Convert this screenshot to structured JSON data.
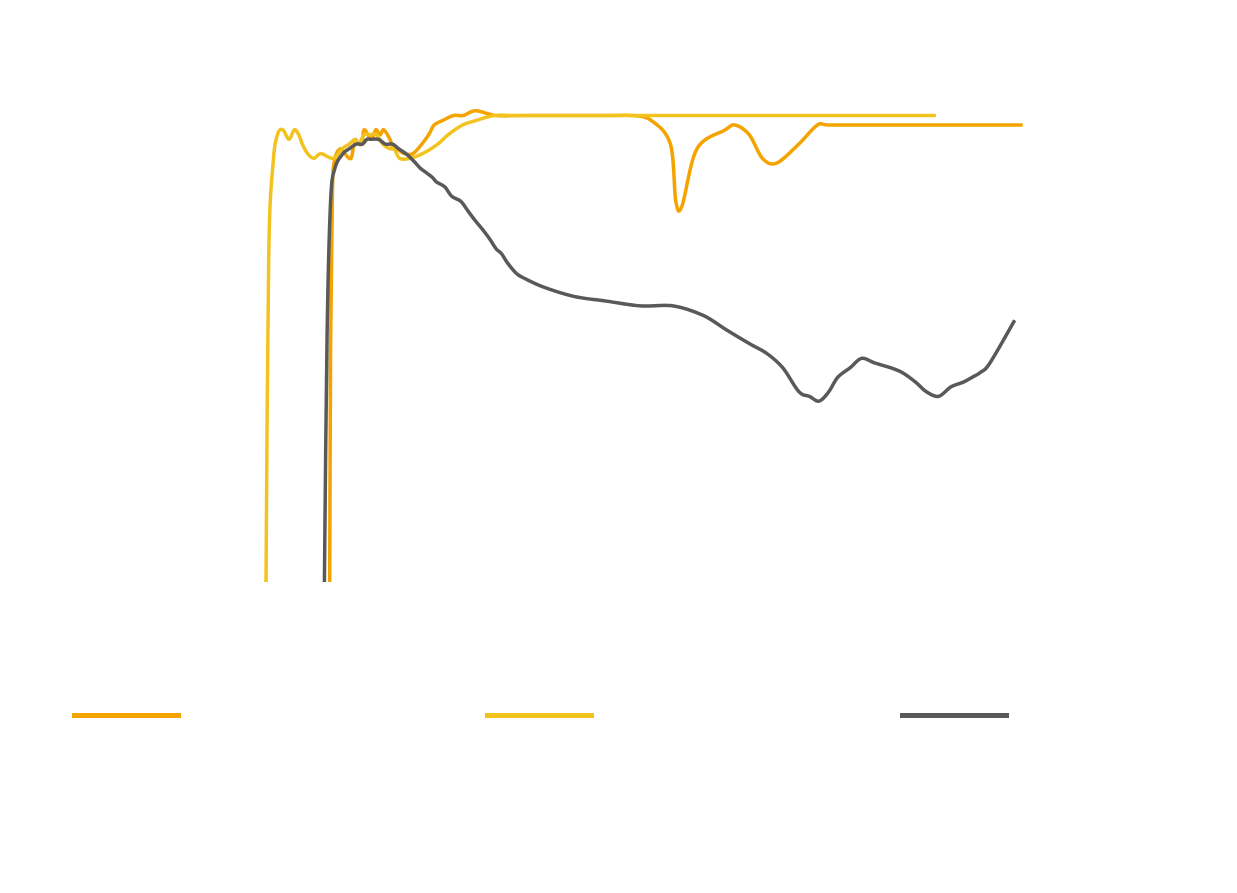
{
  "chart_data": {
    "type": "line",
    "title": "",
    "xlabel": "",
    "ylabel": "",
    "xlim": [
      0,
      100
    ],
    "ylim": [
      0,
      100
    ],
    "grid": false,
    "legend_position": "bottom",
    "series": [
      {
        "name": "",
        "color": "#F4A300",
        "x": [
          7.2,
          7.3,
          7.5,
          7.8,
          8.4,
          8.9,
          9.6,
          10.0,
          10.8,
          11.1,
          11.9,
          12.4,
          12.9,
          13.3,
          14.0,
          14.4,
          14.8,
          15.6,
          16.6,
          17.6,
          18.4,
          19.0,
          20.0,
          21.2,
          22.3,
          23.7,
          26.0,
          29.4,
          32.9,
          36.1,
          38.9,
          41.3,
          43.5,
          45.7,
          46.3,
          47.0,
          48.7,
          51.9,
          53.0,
          54.6,
          56.1,
          57.7,
          60.2,
          62.3,
          63.6,
          68.2,
          71.4,
          73.7,
          75.9,
          81.7,
          85.5
        ],
        "y": [
          0,
          50,
          82,
          89,
          91,
          90,
          89,
          92,
          92,
          95,
          93,
          95,
          94,
          95,
          93,
          91,
          91,
          90,
          90,
          92,
          94,
          96,
          97,
          98,
          98,
          99,
          98,
          98,
          98,
          98,
          98,
          98,
          97,
          92,
          80,
          79,
          91,
          95,
          96,
          94,
          89,
          88,
          92,
          96,
          96,
          96,
          96,
          96,
          96,
          96,
          96
        ]
      },
      {
        "name": "",
        "color": "#F2C31E",
        "x": [
          0,
          0.3,
          0.8,
          1.3,
          1.9,
          2.6,
          3.2,
          3.7,
          4.1,
          4.7,
          5.4,
          6.2,
          7.6,
          8.6,
          9.4,
          10.1,
          10.5,
          11.1,
          11.8,
          12.5,
          13.2,
          14.0,
          14.5,
          15.1,
          16.2,
          17.7,
          19.4,
          20.6,
          22.2,
          23.8,
          25.8,
          28.2,
          31.0,
          34.0,
          37.3,
          40.6,
          43.9,
          47.5,
          51.2,
          55.0,
          58.5,
          62.0,
          66.0,
          69.5,
          72.5,
          75.7
        ],
        "y": [
          0,
          68,
          88,
          94,
          95,
          93,
          95,
          94,
          92,
          90,
          89,
          90,
          89,
          91,
          92,
          93,
          92,
          94,
          94,
          94,
          92,
          91,
          91,
          89,
          89,
          90,
          92,
          94,
          96,
          97,
          98,
          98,
          98,
          98,
          98,
          98,
          98,
          98,
          98,
          98,
          98,
          98,
          98,
          98,
          98,
          98
        ]
      },
      {
        "name": "",
        "color": "#595959",
        "x": [
          6.6,
          6.9,
          7.3,
          7.8,
          8.7,
          9.4,
          10.2,
          10.9,
          11.4,
          11.9,
          12.7,
          13.5,
          14.3,
          15.0,
          15.8,
          16.4,
          16.9,
          17.4,
          18.1,
          18.8,
          19.3,
          20.2,
          21.0,
          22.0,
          22.8,
          23.6,
          24.5,
          25.3,
          26.0,
          26.6,
          27.3,
          28.2,
          29.0,
          31.3,
          34.8,
          38.5,
          42.3,
          46.0,
          49.4,
          52.0,
          54.7,
          56.6,
          58.4,
          60.2,
          61.4,
          62.5,
          63.6,
          64.6,
          66.0,
          67.3,
          68.8,
          70.6,
          71.9,
          73.4,
          74.6,
          76.0,
          77.4,
          78.8,
          79.8,
          80.7,
          81.8,
          84.6
        ],
        "y": [
          0,
          52,
          80,
          87,
          90,
          91,
          92,
          92,
          93,
          93,
          93,
          92,
          92,
          91,
          90,
          89,
          88,
          87,
          86,
          85,
          84,
          83,
          81,
          80,
          78,
          76,
          74,
          72,
          70,
          69,
          67,
          65,
          64,
          62,
          60,
          59,
          58,
          58,
          56,
          53,
          50,
          48,
          45,
          40,
          39,
          38,
          40,
          43,
          45,
          47,
          46,
          45,
          44,
          42,
          40,
          39,
          41,
          42,
          43,
          44,
          46,
          55
        ]
      }
    ]
  }
}
